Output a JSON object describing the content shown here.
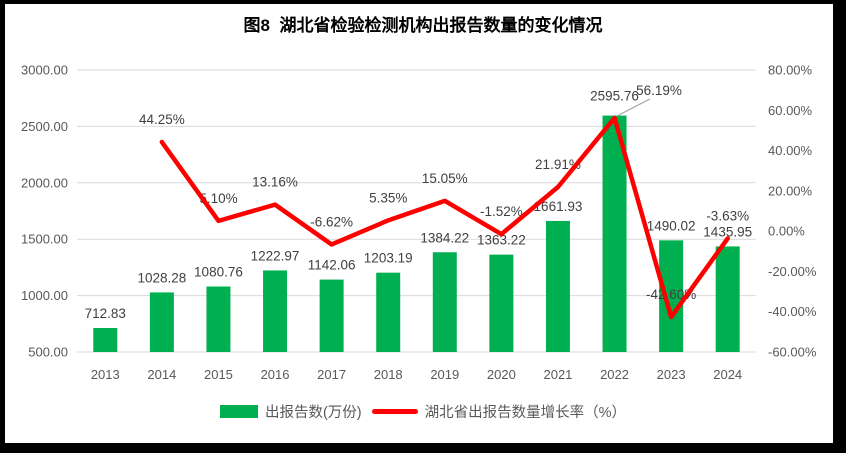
{
  "title": "图8  湖北省检验检测机构出报告数量的变化情况",
  "colors": {
    "bar": "#00B050",
    "line": "#FF0000",
    "grid": "#D9D9D9",
    "axis_text": "#595959",
    "label_text": "#404040",
    "leader_line": "#A6A6A6",
    "frame": "#000000",
    "background": "#FFFFFF"
  },
  "chart_data": {
    "type": "bar",
    "subtype": "bar-line-combo",
    "title": "图8  湖北省检验检测机构出报告数量的变化情况",
    "categories": [
      "2013",
      "2014",
      "2015",
      "2016",
      "2017",
      "2018",
      "2019",
      "2020",
      "2021",
      "2022",
      "2023",
      "2024"
    ],
    "series": [
      {
        "name": "出报告数(万份)",
        "type": "bar",
        "axis": "left",
        "color": "#00B050",
        "values": [
          712.83,
          1028.28,
          1080.76,
          1222.97,
          1142.06,
          1203.19,
          1384.22,
          1363.22,
          1661.93,
          2595.76,
          1490.02,
          1435.95
        ],
        "data_labels": [
          "712.83",
          "1028.28",
          "1080.76",
          "1222.97",
          "1142.06",
          "1203.19",
          "1384.22",
          "1363.22",
          "1661.93",
          "2595.76",
          "1490.02",
          "1435.95"
        ]
      },
      {
        "name": "湖北省出报告数量增长率（%）",
        "type": "line",
        "axis": "right",
        "color": "#FF0000",
        "values": [
          null,
          44.25,
          5.1,
          13.16,
          -6.62,
          5.35,
          15.05,
          -1.52,
          21.91,
          56.19,
          -42.6,
          -3.63
        ],
        "data_labels": [
          null,
          "44.25%",
          "5.10%",
          "13.16%",
          "-6.62%",
          "5.35%",
          "15.05%",
          "-1.52%",
          "21.91%",
          "56.19%",
          "-42.60%",
          "-3.63%"
        ]
      }
    ],
    "left_axis": {
      "min": 500,
      "max": 3000,
      "step": 500,
      "tick_values": [
        500,
        1000,
        1500,
        2000,
        2500,
        3000
      ],
      "tick_labels": [
        "500.00",
        "1000.00",
        "1500.00",
        "2000.00",
        "2500.00",
        "3000.00"
      ]
    },
    "right_axis": {
      "min": -60,
      "max": 80,
      "step": 20,
      "tick_values": [
        -60,
        -40,
        -20,
        0,
        20,
        40,
        60,
        80
      ],
      "tick_labels": [
        "-60.00%",
        "-40.00%",
        "-20.00%",
        "0.00%",
        "20.00%",
        "40.00%",
        "60.00%",
        "80.00%"
      ]
    },
    "grid": "horizontal-on",
    "legend_position": "bottom"
  }
}
